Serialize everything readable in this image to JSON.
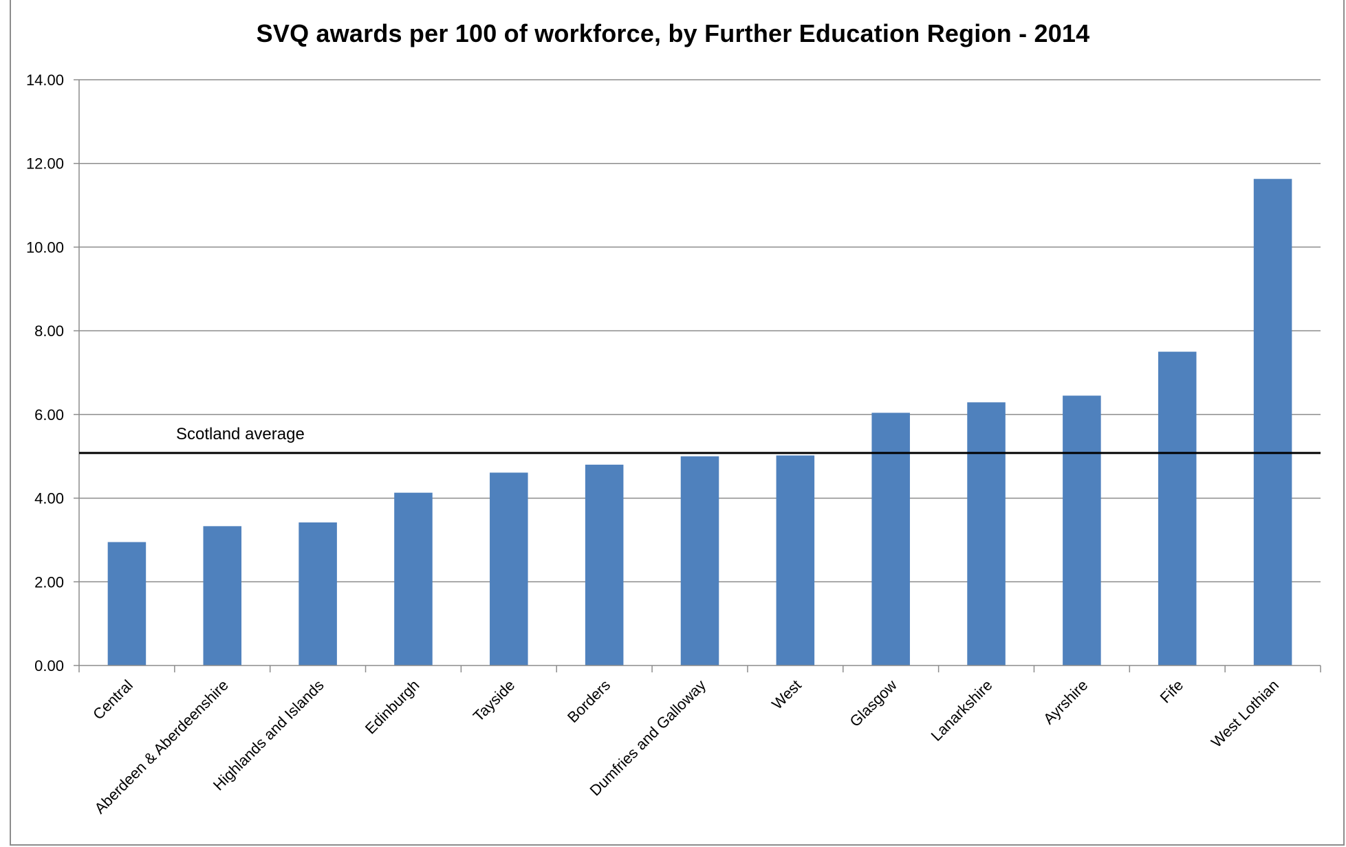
{
  "chart_data": {
    "type": "bar",
    "title": "SVQ awards per 100 of workforce, by Further Education Region - 2014",
    "xlabel": "",
    "ylabel": "",
    "ylim": [
      0,
      14
    ],
    "yticks": [
      "0.00",
      "2.00",
      "4.00",
      "6.00",
      "8.00",
      "10.00",
      "12.00",
      "14.00"
    ],
    "grid": true,
    "legend": "none",
    "categories": [
      "Central",
      "Aberdeen & Aberdeenshire",
      "Highlands and Islands",
      "Edinburgh",
      "Tayside",
      "Borders",
      "Dumfries and Galloway",
      "West",
      "Glasgow",
      "Lanarkshire",
      "Ayrshire",
      "Fife",
      "West Lothian"
    ],
    "values": [
      2.95,
      3.33,
      3.42,
      4.13,
      4.61,
      4.8,
      5.0,
      5.02,
      6.04,
      6.29,
      6.45,
      7.5,
      11.63
    ],
    "reference_line": {
      "label": "Scotland average",
      "value": 5.08
    },
    "colors": {
      "bar": "#4f81bd",
      "grid": "#8c8c8c",
      "axis": "#8c8c8c",
      "reference": "#000000"
    }
  }
}
